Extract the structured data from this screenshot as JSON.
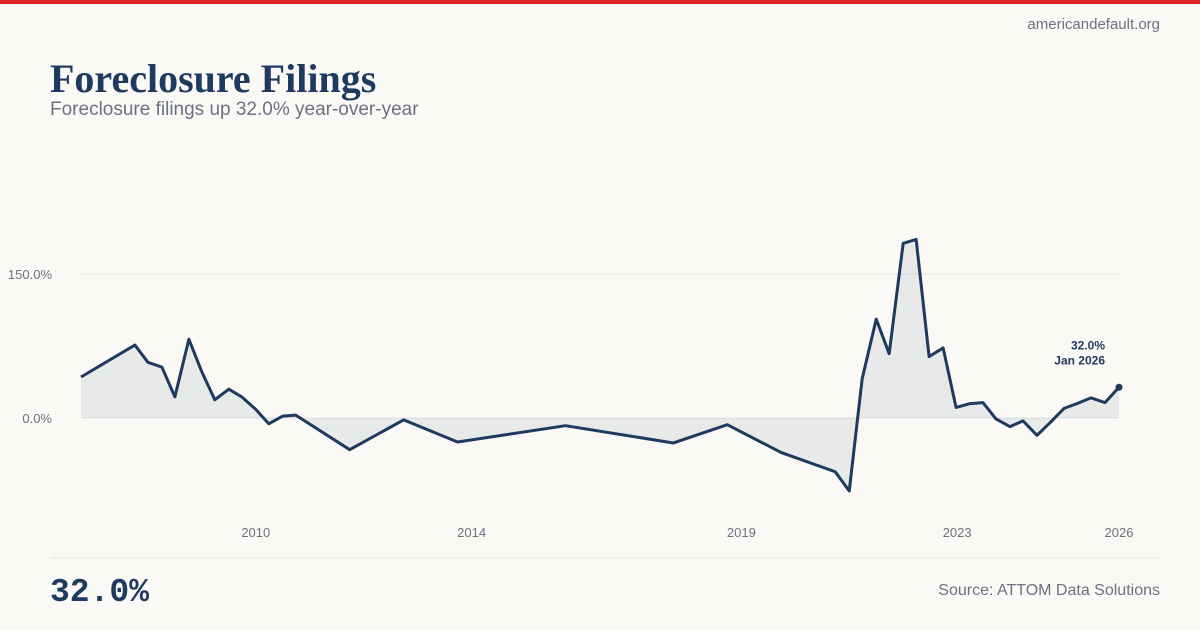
{
  "site": "americandefault.org",
  "headline": "32.0%",
  "source": "Source: ATTOM Data Solutions",
  "chart_data": {
    "type": "line",
    "title": "Foreclosure Filings",
    "subtitle": "Foreclosure filings up 32.0% year-over-year",
    "color": "#1e3a5f",
    "accent_color": "#e02424",
    "area": true,
    "x": [
      2006.76,
      2007.76,
      2008.0,
      2008.26,
      2008.5,
      2008.76,
      2009.0,
      2009.24,
      2009.5,
      2009.74,
      2010.0,
      2010.24,
      2010.5,
      2010.74,
      2011.74,
      2012.74,
      2013.74,
      2015.74,
      2017.74,
      2018.74,
      2019.74,
      2020.74,
      2021.0,
      2021.24,
      2021.5,
      2021.74,
      2022.0,
      2022.24,
      2022.48,
      2022.74,
      2022.98,
      2023.24,
      2023.48,
      2023.72,
      2023.98,
      2024.22,
      2024.48,
      2024.72,
      2024.98,
      2025.22,
      2025.48,
      2025.74,
      2026.0
    ],
    "values": [
      42.7,
      76,
      58,
      53,
      22,
      82,
      48,
      19,
      30,
      22,
      9,
      -6,
      2,
      3,
      -33,
      -2,
      -25,
      -8,
      -26,
      -7,
      -36,
      -56,
      -76,
      41,
      103,
      67,
      182,
      186,
      64,
      73,
      11,
      15,
      16,
      -1,
      -9,
      -3,
      -18,
      -5,
      10,
      15,
      21,
      16,
      32
    ],
    "annotation": {
      "value_label": "32.0%",
      "date_label": "Jan 2026"
    },
    "xlim": [
      2006.76,
      2026.0
    ],
    "xticks": [
      2010,
      2014,
      2019,
      2023,
      2026
    ],
    "ylim": [
      -100,
      200
    ],
    "yticks": [
      {
        "value": 0,
        "label": "0.0%"
      },
      {
        "value": 150,
        "label": "150.0%"
      }
    ]
  }
}
